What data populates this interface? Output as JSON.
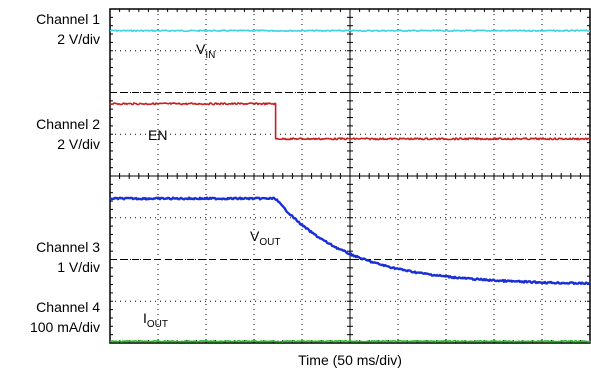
{
  "chart_data": {
    "type": "line",
    "title": "",
    "xlabel": "Time (50 ms/div)",
    "divisions": {
      "horizontal": 10,
      "vertical": 8
    },
    "grid": true,
    "channels": [
      {
        "label": "Channel 1",
        "scale": "2 V/div"
      },
      {
        "label": "Channel 2",
        "scale": "2 V/div"
      },
      {
        "label": "Channel 3",
        "scale": "1 V/div"
      },
      {
        "label": "Channel 4",
        "scale": "100 mA/div"
      }
    ],
    "series": [
      {
        "name": "V",
        "subscript": "IN",
        "color": "#3fd3e0",
        "level_div": 7.48,
        "shape": "flat"
      },
      {
        "name": "EN",
        "subscript": "",
        "color": "#c62020",
        "high_div": 5.73,
        "low_div": 4.89,
        "edge_time_div": 3.45,
        "shape": "step-down"
      },
      {
        "name": "V",
        "subscript": "OUT",
        "color": "#1a2fd6",
        "start_div": 3.46,
        "final_div": 1.4,
        "decay_start_div": 3.45,
        "tau_div": 1.5,
        "shape": "exp-decay"
      },
      {
        "name": "I",
        "subscript": "OUT",
        "color": "#22bb22",
        "level_div": 0.04,
        "shape": "flat"
      }
    ]
  }
}
